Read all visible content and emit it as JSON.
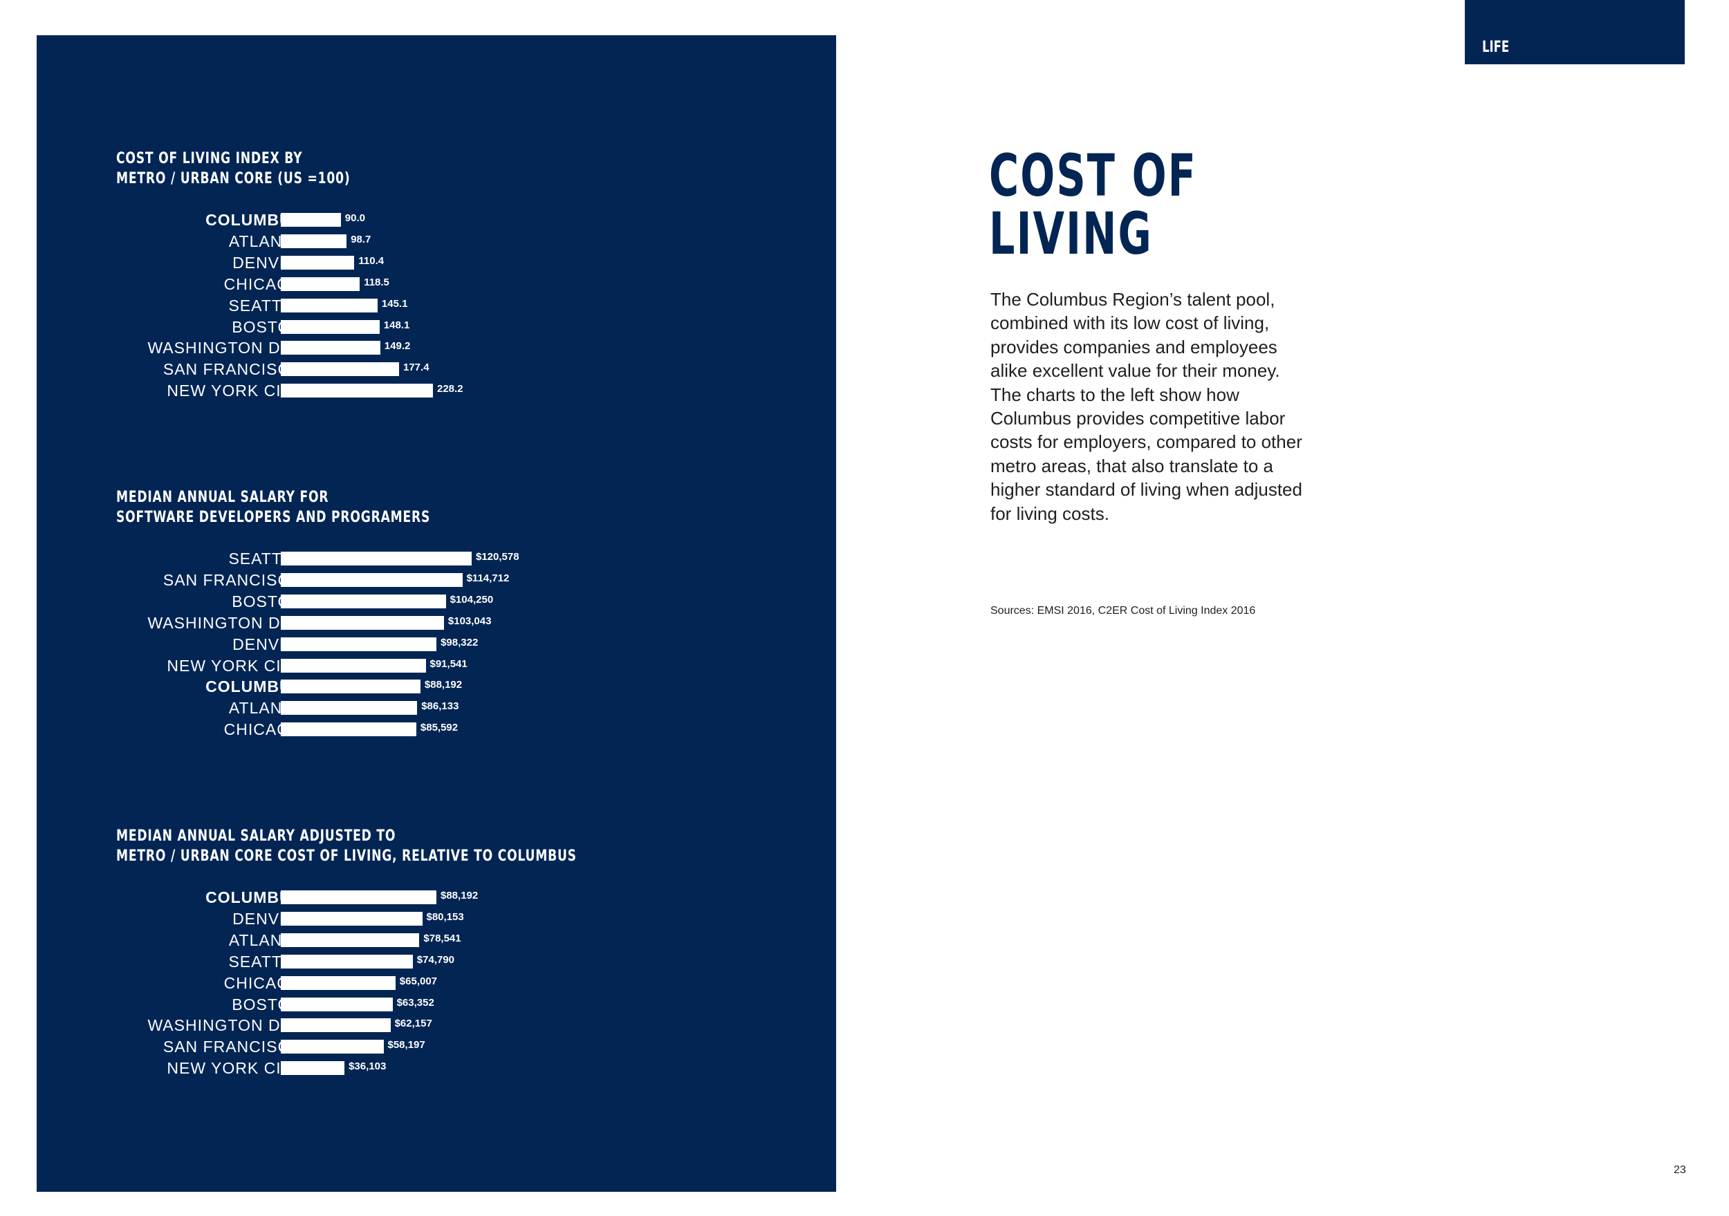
{
  "section_tab": "LIFE",
  "heading": [
    "COST OF",
    "LIVING"
  ],
  "body_text": "The Columbus Region’s talent pool, combined with its low cost of living, provides companies and employees alike excellent value for their money. The charts to the left show how Columbus provides competitive labor costs for employers, compared to other metro areas, that also translate to a higher standard of living when adjusted for living costs.",
  "sources": "Sources: EMSI 2016, C2ER Cost of Living Index 2016",
  "page_number": "23",
  "colors": {
    "panel": "#022554",
    "bar": "#ffffff",
    "heading": "#022554"
  },
  "chart_data": [
    {
      "type": "bar",
      "orientation": "horizontal",
      "title": [
        "COST OF LIVING INDEX BY",
        "METRO / URBAN CORE (US =100)"
      ],
      "categories": [
        "COLUMBUS",
        "ATLANTA",
        "DENVER",
        "CHICAGO",
        "SEATTLE",
        "BOSTON",
        "WASHINGTON D.C.",
        "SAN FRANCISCO",
        "NEW YORK CITY"
      ],
      "values": [
        90.0,
        98.7,
        110.4,
        118.5,
        145.1,
        148.1,
        149.2,
        177.4,
        228.2
      ],
      "value_labels": [
        "90.0",
        "98.7",
        "110.4",
        "118.5",
        "145.1",
        "148.1",
        "149.2",
        "177.4",
        "228.2"
      ],
      "highlight": "COLUMBUS",
      "xlim": [
        0,
        228.2
      ],
      "grid": false
    },
    {
      "type": "bar",
      "orientation": "horizontal",
      "title": [
        "MEDIAN ANNUAL SALARY FOR",
        "SOFTWARE DEVELOPERS AND PROGRAMERS"
      ],
      "categories": [
        "SEATTLE",
        "SAN FRANCISCO",
        "BOSTON",
        "WASHINGTON D.C.",
        "DENVER",
        "NEW YORK CITY",
        "COLUMBUS",
        "ATLANTA",
        "CHICAGO"
      ],
      "values": [
        120578,
        114712,
        104250,
        103043,
        98322,
        91541,
        88192,
        86133,
        85592
      ],
      "value_labels": [
        "$120,578",
        "$114,712",
        "$104,250",
        "$103,043",
        "$98,322",
        "$91,541",
        "$88,192",
        "$86,133",
        "$85,592"
      ],
      "highlight": "COLUMBUS",
      "xlim": [
        0,
        120578
      ],
      "grid": false
    },
    {
      "type": "bar",
      "orientation": "horizontal",
      "title": [
        "MEDIAN ANNUAL SALARY ADJUSTED TO",
        "METRO / URBAN CORE COST OF LIVING, RELATIVE TO COLUMBUS"
      ],
      "categories": [
        "COLUMBUS",
        "DENVER",
        "ATLANTA",
        "SEATTLE",
        "CHICAGO",
        "BOSTON",
        "WASHINGTON D.C.",
        "SAN FRANCISCO",
        "NEW YORK CITY"
      ],
      "values": [
        88192,
        80153,
        78541,
        74790,
        65007,
        63352,
        62157,
        58197,
        36103
      ],
      "value_labels": [
        "$88,192",
        "$80,153",
        "$78,541",
        "$74,790",
        "$65,007",
        "$63,352",
        "$62,157",
        "$58,197",
        "$36,103"
      ],
      "highlight": "COLUMBUS",
      "xlim": [
        0,
        88192
      ],
      "grid": false
    }
  ]
}
